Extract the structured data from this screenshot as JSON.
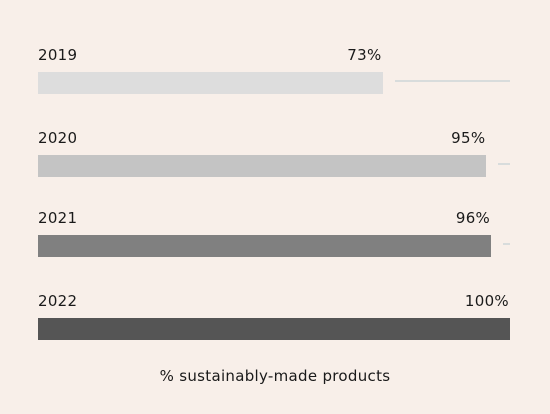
{
  "chart_data": {
    "type": "bar",
    "orientation": "horizontal",
    "categories": [
      "2019",
      "2020",
      "2021",
      "2022"
    ],
    "values": [
      73,
      95,
      96,
      100
    ],
    "value_labels": [
      "73%",
      "95%",
      "96%",
      "100%"
    ],
    "xlim": [
      0,
      100
    ],
    "colors": [
      "#dddddd",
      "#c4c4c4",
      "#808080",
      "#555555"
    ],
    "xlabel": "% sustainably-made products",
    "grid": false,
    "legend": "none"
  }
}
